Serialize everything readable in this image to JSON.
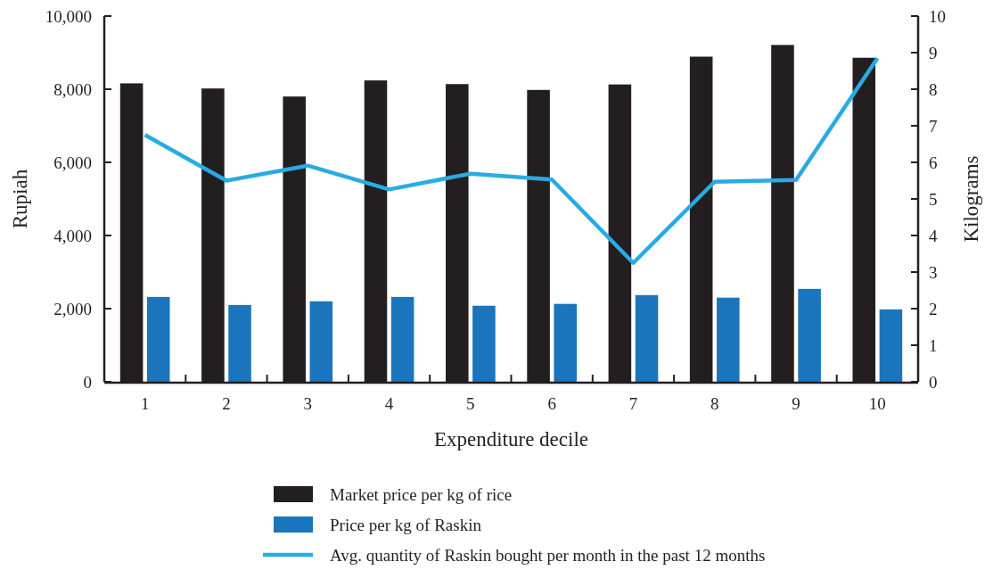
{
  "chart_data": {
    "type": "bar",
    "xlabel": "Expenditure decile",
    "ylabel": "Rupiah",
    "y2label": "Kilograms",
    "categories": [
      "1",
      "2",
      "3",
      "4",
      "5",
      "6",
      "7",
      "8",
      "9",
      "10"
    ],
    "series": [
      {
        "name": "Market price per kg of rice",
        "color": "#231f20",
        "values": [
          8160,
          8020,
          7800,
          8240,
          8140,
          7980,
          8130,
          8890,
          9210,
          8860
        ]
      },
      {
        "name": "Price per kg of Raskin",
        "color": "#1b75bc",
        "values": [
          2320,
          2100,
          2200,
          2320,
          2080,
          2130,
          2370,
          2300,
          2540,
          1980
        ]
      },
      {
        "name": "Avg. quantity of Raskin bought per month in the past 12 months",
        "type": "line",
        "axis": "y2",
        "color": "#29abe2",
        "values": [
          6.75,
          5.5,
          5.91,
          5.26,
          5.69,
          5.53,
          3.25,
          5.47,
          5.52,
          8.85
        ]
      }
    ],
    "ylim": [
      0,
      10000
    ],
    "yticks": [
      {
        "value": 0,
        "label": "0"
      },
      {
        "value": 2000,
        "label": "2,000"
      },
      {
        "value": 4000,
        "label": "4,000"
      },
      {
        "value": 6000,
        "label": "6,000"
      },
      {
        "value": 8000,
        "label": "8,000"
      },
      {
        "value": 10000,
        "label": "10,000"
      }
    ],
    "y2lim": [
      0,
      10
    ],
    "y2ticks": [
      0,
      1,
      2,
      3,
      4,
      5,
      6,
      7,
      8,
      9,
      10
    ],
    "grid": false,
    "legend": "bottom",
    "line_style": "solid",
    "marker": "none"
  }
}
